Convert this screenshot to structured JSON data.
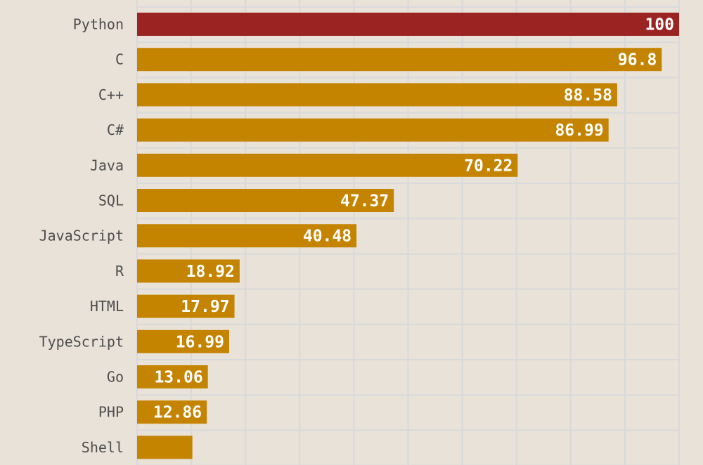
{
  "chart_data": {
    "type": "bar",
    "orientation": "horizontal",
    "categories": [
      "Python",
      "C",
      "C++",
      "C#",
      "Java",
      "SQL",
      "JavaScript",
      "R",
      "HTML",
      "TypeScript",
      "Go",
      "PHP",
      "Shell"
    ],
    "values": [
      100,
      96.8,
      88.58,
      86.99,
      70.22,
      47.37,
      40.48,
      18.92,
      17.97,
      16.99,
      13.06,
      12.86,
      null
    ],
    "value_labels": [
      "100",
      "96.8",
      "88.58",
      "86.99",
      "70.22",
      "47.37",
      "40.48",
      "18.92",
      "17.97",
      "16.99",
      "13.06",
      "12.86",
      ""
    ],
    "shell_estimated_value": 10.2,
    "xlim": [
      0,
      100
    ],
    "grid": true,
    "highlight_category": "Python",
    "title": "",
    "xlabel": "",
    "ylabel": ""
  },
  "colors": {
    "background": "#e8e2d8",
    "bar": "#c58400",
    "highlight_bar": "#9b2423",
    "grid": "#d7d9db",
    "category_text": "#4d4d4d",
    "value_text": "#ffffff"
  }
}
